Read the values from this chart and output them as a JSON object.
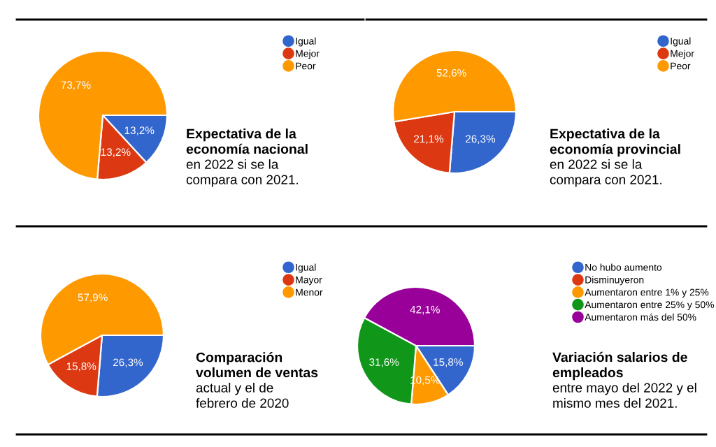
{
  "chart_data": [
    {
      "type": "pie",
      "title": "Expectativa de la economía nacional",
      "subtitle": "en 2022 si se la compara con 2021.",
      "categories": [
        "Igual",
        "Mejor",
        "Peor"
      ],
      "values": [
        13.2,
        13.2,
        73.7
      ],
      "value_labels": [
        "13,2%",
        "13,2%",
        "73,7%"
      ],
      "colors": [
        "#3366cc",
        "#dc3912",
        "#ff9900"
      ],
      "legend": "top right"
    },
    {
      "type": "pie",
      "title": "Expectativa de la economía provincial",
      "subtitle": "en 2022 si se la compara con 2021.",
      "categories": [
        "Igual",
        "Mejor",
        "Peor"
      ],
      "values": [
        26.3,
        21.1,
        52.6
      ],
      "value_labels": [
        "26,3%",
        "21,1%",
        "52,6%"
      ],
      "colors": [
        "#3366cc",
        "#dc3912",
        "#ff9900"
      ],
      "legend": "top right"
    },
    {
      "type": "pie",
      "title": "Comparación volumen de ventas",
      "subtitle": "actual y el de febrero de 2020",
      "categories": [
        "Igual",
        "Mayor",
        "Menor"
      ],
      "values": [
        26.3,
        15.8,
        57.9
      ],
      "value_labels": [
        "26,3%",
        "15,8%",
        "57,9%"
      ],
      "colors": [
        "#3366cc",
        "#dc3912",
        "#ff9900"
      ],
      "legend": "top right"
    },
    {
      "type": "pie",
      "title": "Variación salarios de empleados",
      "subtitle": "entre mayo del 2022 y el mismo mes del 2021.",
      "categories": [
        "No hubo aumento",
        "Disminuyeron",
        "Aumentaron entre 1% y 25%",
        "Aumentaron entre 25% y 50%",
        "Aumentaron más del 50%"
      ],
      "values": [
        15.8,
        0,
        10.5,
        31.6,
        42.1
      ],
      "value_labels": [
        "15,8%",
        null,
        "10,5%",
        "31,6%",
        "42,1%"
      ],
      "colors": [
        "#3366cc",
        "#dc3912",
        "#ff9900",
        "#109618",
        "#990099"
      ],
      "legend": "top right"
    }
  ]
}
